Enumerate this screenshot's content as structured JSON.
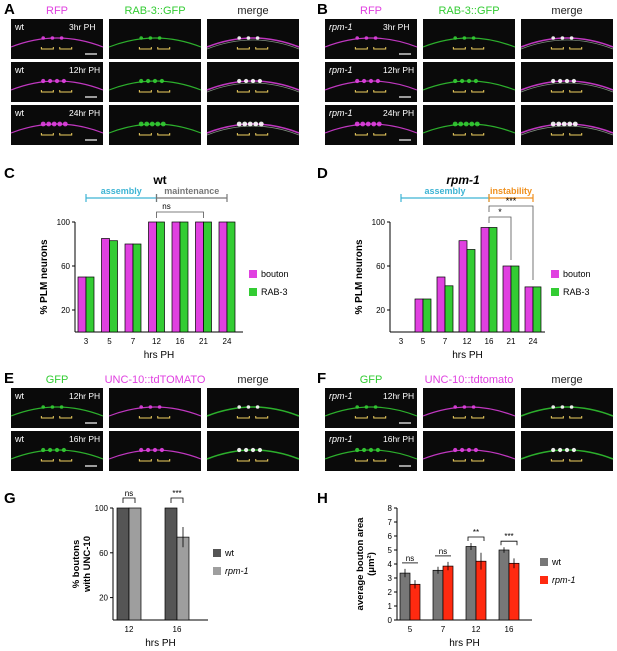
{
  "panels": {
    "A": {
      "letter": "A",
      "genotype": "wt",
      "channels": [
        "RFP",
        "RAB-3::GFP",
        "merge"
      ],
      "channel_colors": [
        "#e040e0",
        "#33cc33",
        "#222222"
      ],
      "rows": [
        "3hr PH",
        "12hr PH",
        "24hr PH"
      ]
    },
    "B": {
      "letter": "B",
      "genotype": "rpm-1",
      "channels": [
        "RFP",
        "RAB-3::GFP",
        "merge"
      ],
      "channel_colors": [
        "#e040e0",
        "#33cc33",
        "#222222"
      ],
      "rows": [
        "3hr PH",
        "12hr PH",
        "24hr PH"
      ]
    },
    "C": {
      "letter": "C"
    },
    "D": {
      "letter": "D"
    },
    "E": {
      "letter": "E",
      "genotype": "wt",
      "channels": [
        "GFP",
        "UNC-10::tdTOMATO",
        "merge"
      ],
      "channel_colors": [
        "#33cc33",
        "#e040e0",
        "#222222"
      ],
      "rows": [
        "12hr PH",
        "16hr PH"
      ]
    },
    "F": {
      "letter": "F",
      "genotype": "rpm-1",
      "channels": [
        "GFP",
        "UNC-10::tdtomato",
        "merge"
      ],
      "channel_colors": [
        "#33cc33",
        "#e040e0",
        "#222222"
      ],
      "rows": [
        "12hr PH",
        "16hr PH"
      ]
    },
    "G": {
      "letter": "G"
    },
    "H": {
      "letter": "H"
    }
  },
  "colors": {
    "magenta": "#e040e0",
    "green": "#33cc33",
    "cyan": "#3db4d4",
    "gray": "#777777",
    "orange": "#f0901e",
    "darkgray": "#555555",
    "lightgray": "#9e9e9e",
    "red": "#ff2a10"
  },
  "chart_data": [
    {
      "id": "C",
      "type": "bar",
      "title": "wt",
      "xlabel": "hrs PH",
      "ylabel": "% PLM neurons",
      "categories": [
        "3",
        "5",
        "7",
        "12",
        "16",
        "21",
        "24"
      ],
      "series": [
        {
          "name": "bouton",
          "color": "#e040e0",
          "values": [
            50,
            85,
            80,
            100,
            100,
            100,
            100
          ]
        },
        {
          "name": "RAB-3",
          "color": "#33cc33",
          "values": [
            50,
            83,
            80,
            100,
            100,
            100,
            100
          ]
        }
      ],
      "ylim": [
        0,
        100
      ],
      "yticks": [
        20,
        60,
        100
      ],
      "legend": "right",
      "phases": [
        {
          "label": "assembly",
          "color": "#3db4d4",
          "from": "3",
          "to": "12"
        },
        {
          "label": "maintenance",
          "color": "#777777",
          "from": "12",
          "to": "24"
        }
      ],
      "significance": [
        {
          "label": "ns",
          "from": "12",
          "to": "21"
        }
      ]
    },
    {
      "id": "D",
      "type": "bar",
      "title": "rpm-1",
      "xlabel": "hrs PH",
      "ylabel": "% PLM neurons",
      "categories": [
        "3",
        "5",
        "7",
        "12",
        "16",
        "21",
        "24"
      ],
      "series": [
        {
          "name": "bouton",
          "color": "#e040e0",
          "values": [
            0,
            30,
            50,
            83,
            95,
            60,
            41
          ]
        },
        {
          "name": "RAB-3",
          "color": "#33cc33",
          "values": [
            0,
            30,
            42,
            75,
            95,
            60,
            41
          ]
        }
      ],
      "ylim": [
        0,
        100
      ],
      "yticks": [
        20,
        60,
        100
      ],
      "legend": "right",
      "phases": [
        {
          "label": "assembly",
          "color": "#3db4d4",
          "from": "3",
          "to": "16"
        },
        {
          "label": "instability",
          "color": "#f0901e",
          "from": "16",
          "to": "24"
        }
      ],
      "significance": [
        {
          "label": "*",
          "from": "16",
          "to": "21"
        },
        {
          "label": "***",
          "from": "16",
          "to": "24"
        }
      ]
    },
    {
      "id": "G",
      "type": "bar",
      "xlabel": "hrs PH",
      "ylabel_lines": [
        "% boutons",
        "with UNC-10"
      ],
      "categories": [
        "12",
        "16"
      ],
      "series": [
        {
          "name": "wt",
          "color": "#555555",
          "values": [
            100,
            100
          ]
        },
        {
          "name": "rpm-1",
          "color": "#9e9e9e",
          "values": [
            100,
            74
          ],
          "errors": [
            0,
            9
          ]
        }
      ],
      "ylim": [
        0,
        100
      ],
      "yticks": [
        20,
        60,
        100
      ],
      "legend": "right",
      "significance": [
        {
          "label": "ns",
          "category": "12"
        },
        {
          "label": "***",
          "category": "16"
        }
      ]
    },
    {
      "id": "H",
      "type": "bar",
      "xlabel": "hrs PH",
      "ylabel_lines": [
        "average bouton area",
        "(μm²)"
      ],
      "categories": [
        "5",
        "7",
        "12",
        "16"
      ],
      "series": [
        {
          "name": "wt",
          "color": "#777777",
          "values": [
            3.35,
            3.55,
            5.25,
            5.0
          ],
          "errors": [
            0.3,
            0.25,
            0.25,
            0.2
          ]
        },
        {
          "name": "rpm-1",
          "color": "#ff2a10",
          "values": [
            2.55,
            3.85,
            4.2,
            4.05
          ],
          "errors": [
            0.3,
            0.3,
            0.6,
            0.35
          ]
        }
      ],
      "ylim": [
        0,
        8
      ],
      "yticks": [
        0,
        1,
        2,
        3,
        4,
        5,
        6,
        7,
        8
      ],
      "legend": "right",
      "significance": [
        {
          "label": "ns",
          "category": "5"
        },
        {
          "label": "ns",
          "category": "7"
        },
        {
          "label": "**",
          "category": "12"
        },
        {
          "label": "***",
          "category": "16"
        }
      ]
    }
  ]
}
